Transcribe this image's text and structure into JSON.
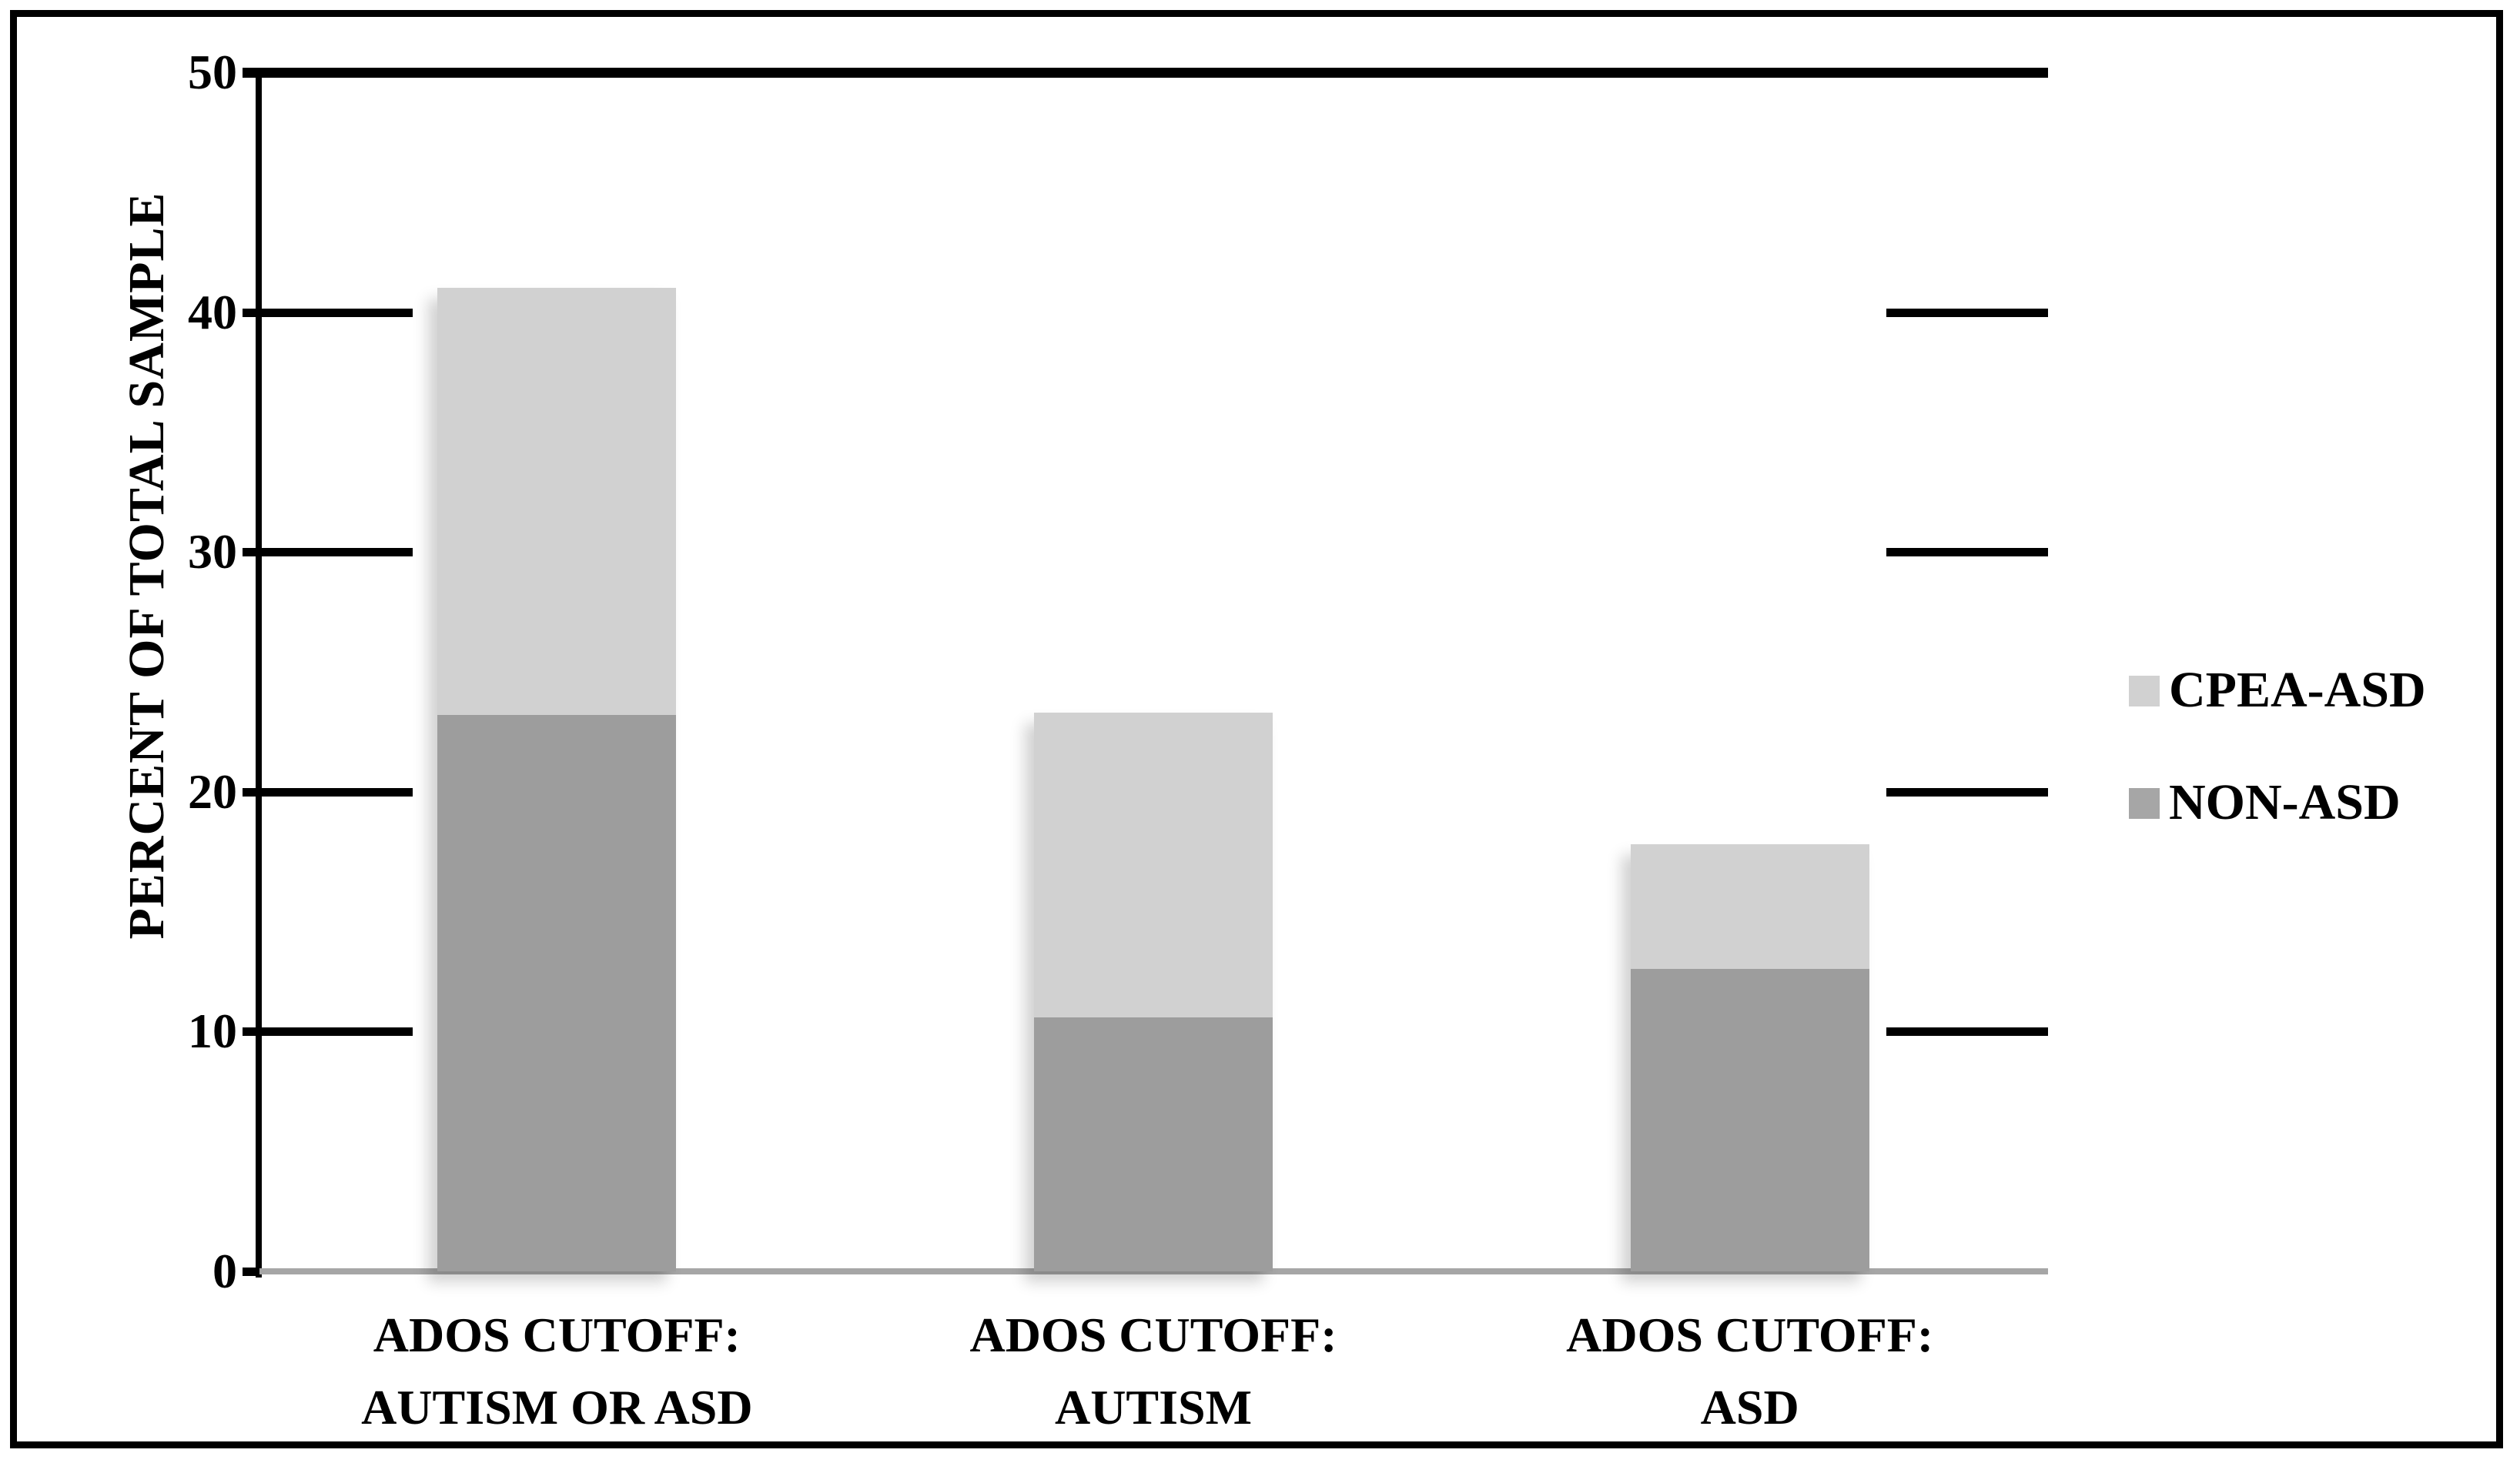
{
  "figure": {
    "background_color": "#ffffff",
    "frame_color": "#000000"
  },
  "chart_data": {
    "type": "bar",
    "stacked": true,
    "title": "",
    "xlabel": "",
    "ylabel": "PERCENT OF TOTAL SAMPLE",
    "ylim": [
      0,
      50
    ],
    "yticks": [
      0,
      10,
      20,
      30,
      40,
      50
    ],
    "ytick_labels": [
      "0",
      "10",
      "20",
      "30",
      "40",
      "50"
    ],
    "grid": "short tick marks at left and right edges; full-width line at 50; gray baseline at 0",
    "legend_position": "right",
    "categories": [
      {
        "line1": "ADOS CUTOFF:",
        "line2": "AUTISM OR ASD"
      },
      {
        "line1": "ADOS CUTOFF:",
        "line2": "AUTISM"
      },
      {
        "line1": "ADOS CUTOFF:",
        "line2": "ASD"
      }
    ],
    "series": [
      {
        "name": "NON-ASD",
        "color": "#9D9D9D",
        "values": [
          23.2,
          10.6,
          12.6
        ]
      },
      {
        "name": "CPEA-ASD",
        "color": "#D1D1D1",
        "values": [
          17.8,
          12.7,
          5.2
        ]
      }
    ],
    "stack_totals": [
      41.0,
      23.3,
      17.8
    ]
  },
  "axis_colors": {
    "line_color": "#000000",
    "baseline_color": "#A6A6A6"
  },
  "legend": {
    "items": [
      {
        "label": "CPEA-ASD",
        "color": "#D1D1D1"
      },
      {
        "label": "NON-ASD",
        "color": "#A6A6A6"
      }
    ]
  }
}
